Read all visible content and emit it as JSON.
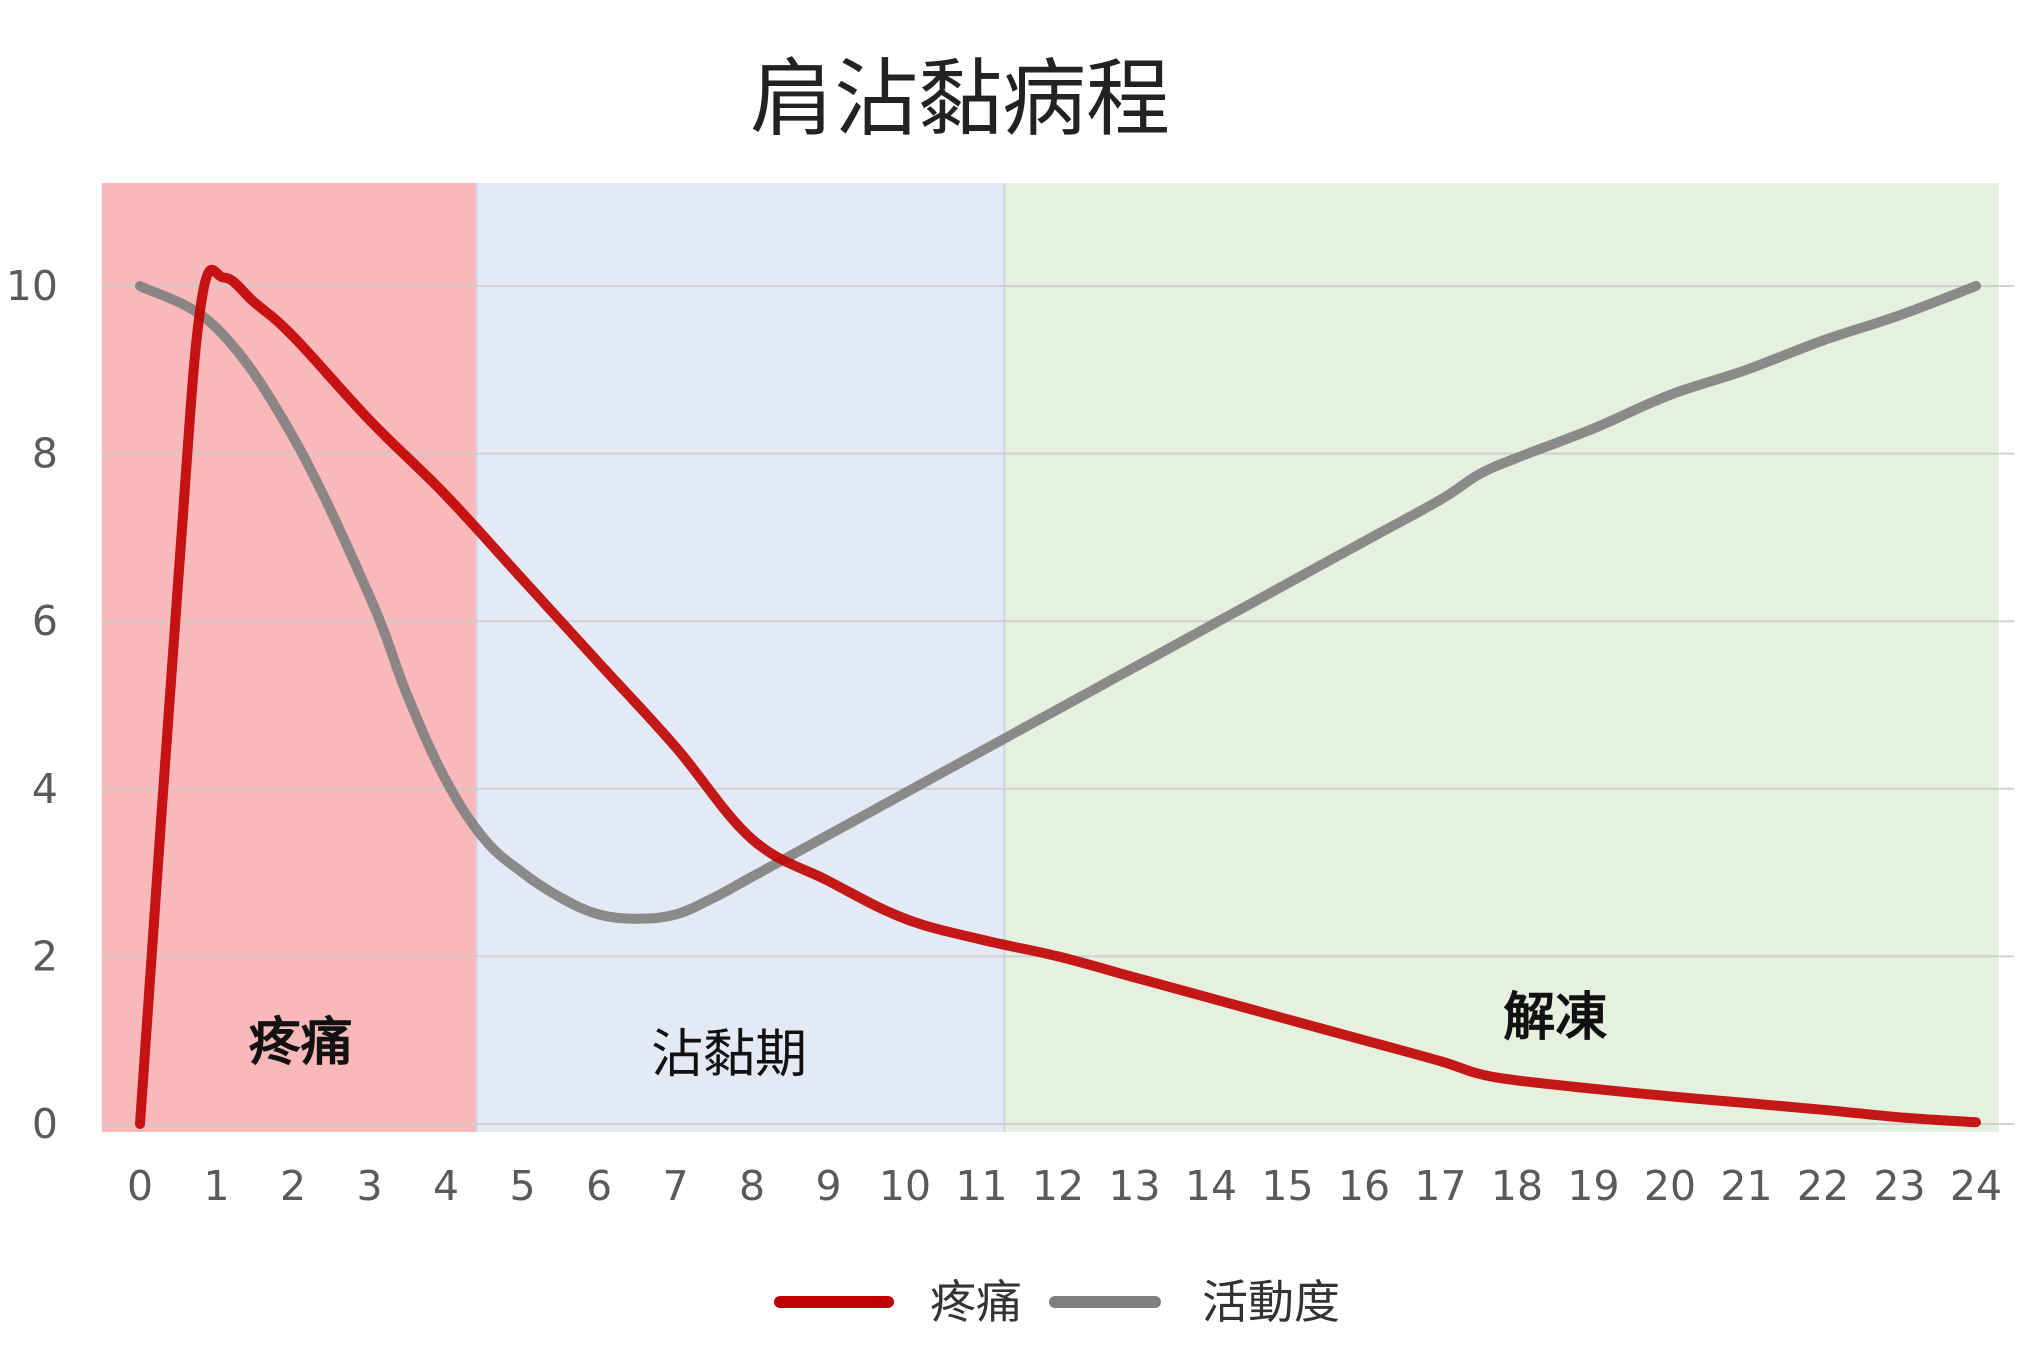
{
  "chart_data": {
    "type": "line",
    "title": "肩沾黏病程",
    "xlabel": "",
    "ylabel": "",
    "xlim": [
      0,
      24
    ],
    "ylim": [
      0,
      10
    ],
    "x_ticks": [
      "0",
      "1",
      "2",
      "3",
      "4",
      "5",
      "6",
      "7",
      "8",
      "9",
      "10",
      "11",
      "12",
      "13",
      "14",
      "15",
      "16",
      "17",
      "18",
      "19",
      "20",
      "21",
      "22",
      "23",
      "24"
    ],
    "y_ticks": [
      "0",
      "2",
      "4",
      "6",
      "8",
      "10"
    ],
    "grid": true,
    "phases": [
      {
        "label": "疼痛",
        "x_start": -0.5,
        "x_end": 4.4,
        "color": "#f9b8b9",
        "bold": true
      },
      {
        "label": "沾黏期",
        "x_start": 4.4,
        "x_end": 11.3,
        "color": "#e3eaf5",
        "bold": false
      },
      {
        "label": "解凍",
        "x_start": 11.3,
        "x_end": 24.3,
        "color": "#e6f0de",
        "bold": true
      }
    ],
    "series": [
      {
        "name": "疼痛",
        "color": "#c00000",
        "points": [
          [
            0,
            0
          ],
          [
            0.5,
            6.5
          ],
          [
            0.8,
            9.8
          ],
          [
            1.1,
            10.1
          ],
          [
            1.5,
            9.8
          ],
          [
            2,
            9.4
          ],
          [
            3,
            8.4
          ],
          [
            4,
            7.5
          ],
          [
            5,
            6.5
          ],
          [
            6,
            5.5
          ],
          [
            7,
            4.5
          ],
          [
            8,
            3.4
          ],
          [
            9,
            2.9
          ],
          [
            10,
            2.45
          ],
          [
            11,
            2.2
          ],
          [
            12,
            2.0
          ],
          [
            13,
            1.75
          ],
          [
            14,
            1.5
          ],
          [
            15,
            1.25
          ],
          [
            16,
            1.0
          ],
          [
            17,
            0.75
          ],
          [
            17.5,
            0.6
          ],
          [
            18,
            0.52
          ],
          [
            19,
            0.42
          ],
          [
            20,
            0.33
          ],
          [
            21,
            0.25
          ],
          [
            22,
            0.17
          ],
          [
            23,
            0.08
          ],
          [
            24,
            0.02
          ]
        ]
      },
      {
        "name": "活動度",
        "color": "#7f7f7f",
        "points": [
          [
            0,
            10.0
          ],
          [
            1,
            9.5
          ],
          [
            2,
            8.2
          ],
          [
            3,
            6.3
          ],
          [
            3.5,
            5.1
          ],
          [
            4,
            4.1
          ],
          [
            4.5,
            3.4
          ],
          [
            5,
            3.0
          ],
          [
            5.5,
            2.7
          ],
          [
            6,
            2.5
          ],
          [
            6.5,
            2.45
          ],
          [
            7,
            2.5
          ],
          [
            7.5,
            2.7
          ],
          [
            8,
            2.95
          ],
          [
            9,
            3.45
          ],
          [
            10,
            3.95
          ],
          [
            11,
            4.45
          ],
          [
            12,
            4.95
          ],
          [
            13,
            5.45
          ],
          [
            14,
            5.95
          ],
          [
            15,
            6.45
          ],
          [
            16,
            6.95
          ],
          [
            17,
            7.45
          ],
          [
            17.5,
            7.75
          ],
          [
            18,
            7.95
          ],
          [
            19,
            8.3
          ],
          [
            20,
            8.7
          ],
          [
            21,
            9.0
          ],
          [
            22,
            9.35
          ],
          [
            23,
            9.65
          ],
          [
            24,
            10.0
          ]
        ]
      }
    ],
    "legend": {
      "position": "bottom-center",
      "entries": [
        "疼痛",
        "活動度"
      ]
    }
  }
}
